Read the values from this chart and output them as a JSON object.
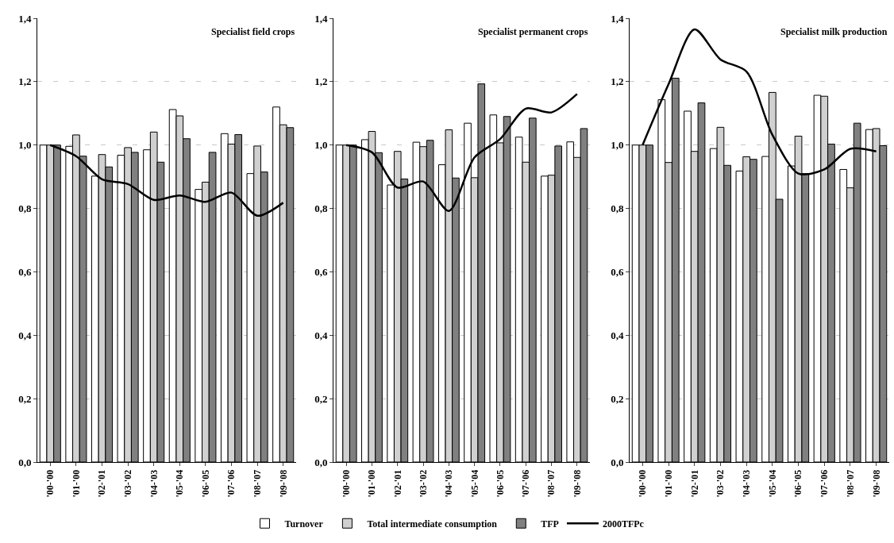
{
  "chart_data": [
    {
      "type": "bar",
      "title": "Specialist field crops",
      "categories": [
        "'00-'00",
        "'01-'00",
        "'02-'01",
        "'03-'02",
        "'04-'03",
        "'05-'04",
        "'06-'05",
        "'07-'06",
        "'08-'07",
        "'09-'08"
      ],
      "series": [
        {
          "color": "#ffffff",
          "values": [
            1.0,
            0.996,
            0.902,
            0.968,
            0.985,
            1.112,
            0.86,
            1.036,
            0.91,
            1.12
          ]
        },
        {
          "color": "#d0d0d0",
          "values": [
            1.0,
            1.032,
            0.97,
            0.992,
            1.041,
            1.092,
            0.883,
            1.003,
            0.997,
            1.064
          ]
        },
        {
          "color": "#808080",
          "values": [
            1.0,
            0.965,
            0.931,
            0.977,
            0.946,
            1.02,
            0.977,
            1.033,
            0.915,
            1.055
          ]
        },
        {
          "type": "line",
          "color": "#000000",
          "values": [
            1.0,
            0.965,
            0.892,
            0.877,
            0.827,
            0.841,
            0.821,
            0.85,
            0.777,
            0.818
          ]
        }
      ],
      "ylim": [
        0,
        1.4
      ],
      "yticks": [
        {
          "value": 0,
          "label": "0,0"
        },
        {
          "value": 0.2,
          "label": "0,2"
        },
        {
          "value": 0.4,
          "label": "0,4"
        },
        {
          "value": 0.6,
          "label": "0,6"
        },
        {
          "value": 0.8,
          "label": "0,8"
        },
        {
          "value": 1.0,
          "label": "1,0"
        },
        {
          "value": 1.2,
          "label": "1,2"
        },
        {
          "value": 1.4,
          "label": "1,4"
        }
      ],
      "grid": "y",
      "legend": false
    },
    {
      "type": "bar",
      "title": "Specialist permanent crops",
      "categories": [
        "'00-'00",
        "'01-'00",
        "'02-'01",
        "'03-'02",
        "'04-'03",
        "'05-'04",
        "'06-'05",
        "'07-'06",
        "'08-'07",
        "'09-'08"
      ],
      "series": [
        {
          "name": "Turnover",
          "color": "#ffffff",
          "values": [
            1.0,
            1.017,
            0.874,
            1.009,
            0.938,
            1.069,
            1.095,
            1.025,
            0.902,
            1.01
          ]
        },
        {
          "name": "Total intermediate consumption",
          "color": "#d0d0d0",
          "values": [
            1.0,
            1.043,
            0.98,
            0.995,
            1.048,
            0.897,
            1.007,
            0.946,
            0.905,
            0.961
          ]
        },
        {
          "name": "TFP",
          "color": "#808080",
          "values": [
            1.0,
            0.976,
            0.893,
            1.015,
            0.896,
            1.193,
            1.09,
            1.085,
            0.997,
            1.052
          ]
        },
        {
          "name": "2000TFPc",
          "type": "line",
          "color": "#000000",
          "values": [
            1.0,
            0.977,
            0.866,
            0.885,
            0.792,
            0.961,
            1.019,
            1.115,
            1.103,
            1.161
          ]
        }
      ],
      "ylim": [
        0,
        1.4
      ],
      "yticks": [
        {
          "value": 0,
          "label": "0,0"
        },
        {
          "value": 0.2,
          "label": "0,2"
        },
        {
          "value": 0.4,
          "label": "0,4"
        },
        {
          "value": 0.6,
          "label": "0,6"
        },
        {
          "value": 0.8,
          "label": "0,8"
        },
        {
          "value": 1.0,
          "label": "1,0"
        },
        {
          "value": 1.2,
          "label": "1,2"
        },
        {
          "value": 1.4,
          "label": "1,4"
        }
      ],
      "grid": "y",
      "legend": "bottom"
    },
    {
      "type": "bar",
      "title": "Specialist milk production",
      "categories": [
        "'00-'00",
        "'01-'00",
        "'02-'01",
        "'03-'02",
        "'04-'03",
        "'05-'04",
        "'06-'05",
        "'07-'06",
        "'08-'07",
        "'09-'08"
      ],
      "series": [
        {
          "color": "#ffffff",
          "values": [
            1.0,
            1.143,
            1.107,
            0.989,
            0.918,
            0.964,
            0.934,
            1.157,
            0.923,
            1.049
          ]
        },
        {
          "color": "#d0d0d0",
          "values": [
            1.0,
            0.945,
            0.98,
            1.056,
            0.963,
            1.166,
            1.028,
            1.154,
            0.865,
            1.052
          ]
        },
        {
          "color": "#808080",
          "values": [
            1.0,
            1.211,
            1.133,
            0.936,
            0.955,
            0.829,
            0.91,
            1.003,
            1.069,
            0.998
          ]
        },
        {
          "type": "line",
          "color": "#000000",
          "values": [
            1.0,
            1.192,
            1.365,
            1.27,
            1.232,
            1.032,
            0.91,
            0.923,
            0.988,
            0.98
          ]
        }
      ],
      "ylim": [
        0,
        1.4
      ],
      "yticks": [
        {
          "value": 0,
          "label": "0,0"
        },
        {
          "value": 0.2,
          "label": "0,2"
        },
        {
          "value": 0.4,
          "label": "0,4"
        },
        {
          "value": 0.6,
          "label": "0,6"
        },
        {
          "value": 0.8,
          "label": "0,8"
        },
        {
          "value": 1.0,
          "label": "1,0"
        },
        {
          "value": 1.2,
          "label": "1,2"
        },
        {
          "value": 1.4,
          "label": "1,4"
        }
      ],
      "grid": "y",
      "legend": false
    }
  ]
}
